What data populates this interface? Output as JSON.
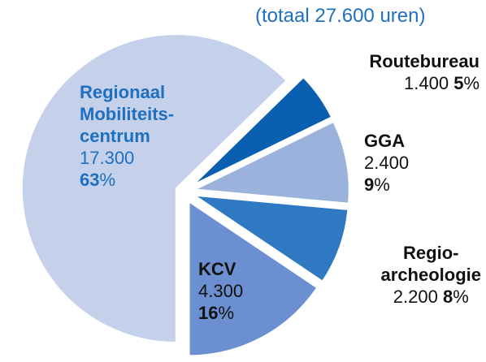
{
  "chart_data": {
    "type": "pie",
    "subtitle": "(totaal 27.600 uren)",
    "categories": [
      "Routebureau",
      "GGA",
      "Regio-\narcheologie",
      "KCV",
      "Regionaal\nMobiliteits-\ncentrum"
    ],
    "values": [
      1400,
      2400,
      2200,
      4300,
      17300
    ],
    "value_labels": [
      "1.400",
      "2.400",
      "2.200",
      "4.300",
      "17.300"
    ],
    "percent": [
      5,
      9,
      8,
      16,
      63
    ],
    "percent_unit": "%",
    "colors": [
      "#0a5fb0",
      "#9bb2dd",
      "#2f78c2",
      "#6b8fd0",
      "#c5d1ea"
    ]
  }
}
